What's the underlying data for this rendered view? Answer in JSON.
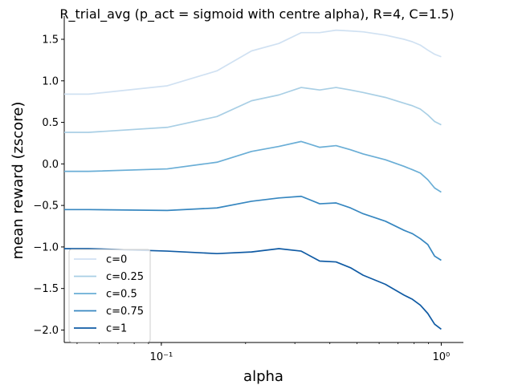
{
  "chart_data": {
    "type": "line",
    "title": "R_trial_avg (p_act = sigmoid with centre alpha), R=4, C=1.5)",
    "xlabel": "alpha",
    "ylabel": "mean reward (zscore)",
    "xscale": "log",
    "xlim": [
      0.045,
      1.2
    ],
    "ylim": [
      -2.15,
      1.78
    ],
    "x_ticks": [
      {
        "value": 0.1,
        "label": "10⁻¹"
      },
      {
        "value": 1,
        "label": "10⁰"
      }
    ],
    "y_ticks": [
      {
        "value": 1.5,
        "label": "1.5"
      },
      {
        "value": 1.0,
        "label": "1.0"
      },
      {
        "value": 0.5,
        "label": "0.5"
      },
      {
        "value": 0.0,
        "label": "0.0"
      },
      {
        "value": -0.5,
        "label": "−0.5"
      },
      {
        "value": -1.0,
        "label": "−1.0"
      },
      {
        "value": -1.5,
        "label": "−1.5"
      },
      {
        "value": -2.0,
        "label": "−2.0"
      }
    ],
    "grid": false,
    "legend_position": "lower-left",
    "x": [
      0.045,
      0.055,
      0.105,
      0.158,
      0.21,
      0.263,
      0.316,
      0.368,
      0.421,
      0.474,
      0.526,
      0.632,
      0.737,
      0.789,
      0.842,
      0.895,
      0.947,
      1.0
    ],
    "series": [
      {
        "name": "c=0",
        "color": "#d0e1f2",
        "values": [
          0.84,
          0.84,
          0.94,
          1.12,
          1.36,
          1.45,
          1.58,
          1.58,
          1.61,
          1.6,
          1.59,
          1.55,
          1.5,
          1.47,
          1.43,
          1.37,
          1.32,
          1.29
        ]
      },
      {
        "name": "c=0.25",
        "color": "#a9cfe5",
        "values": [
          0.38,
          0.38,
          0.44,
          0.57,
          0.76,
          0.83,
          0.92,
          0.89,
          0.92,
          0.89,
          0.86,
          0.8,
          0.73,
          0.7,
          0.66,
          0.59,
          0.51,
          0.47
        ]
      },
      {
        "name": "c=0.5",
        "color": "#6aaed6",
        "values": [
          -0.09,
          -0.09,
          -0.06,
          0.02,
          0.15,
          0.21,
          0.27,
          0.2,
          0.22,
          0.17,
          0.12,
          0.05,
          -0.03,
          -0.07,
          -0.11,
          -0.19,
          -0.29,
          -0.34
        ]
      },
      {
        "name": "c=0.75",
        "color": "#3787c0",
        "values": [
          -0.55,
          -0.55,
          -0.56,
          -0.53,
          -0.45,
          -0.41,
          -0.39,
          -0.48,
          -0.47,
          -0.53,
          -0.6,
          -0.69,
          -0.8,
          -0.84,
          -0.9,
          -0.97,
          -1.11,
          -1.16
        ]
      },
      {
        "name": "c=1",
        "color": "#105ba4",
        "values": [
          -1.02,
          -1.02,
          -1.05,
          -1.08,
          -1.06,
          -1.02,
          -1.05,
          -1.17,
          -1.18,
          -1.25,
          -1.34,
          -1.45,
          -1.58,
          -1.63,
          -1.7,
          -1.8,
          -1.93,
          -1.99
        ]
      }
    ]
  }
}
